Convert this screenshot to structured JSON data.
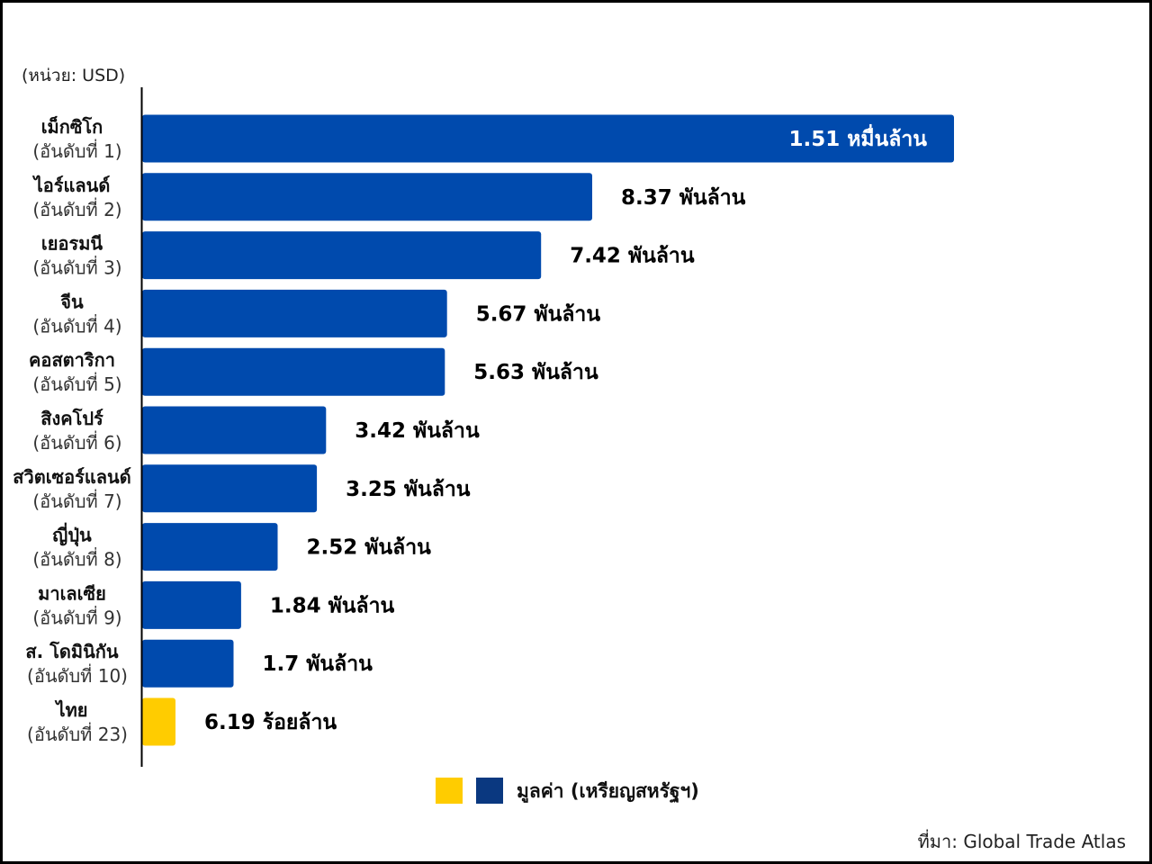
{
  "chart_data": {
    "type": "bar",
    "orientation": "horizontal",
    "unit_label": "(หน่วย: USD)",
    "categories": [
      {
        "name": "เม็กซิโก",
        "rank": "(อันดับที่ 1)",
        "value": 15100000000,
        "label": "1.51 หมื่นล้าน",
        "highlight": false
      },
      {
        "name": "ไอร์แลนด์",
        "rank": "(อันดับที่ 2)",
        "value": 8370000000,
        "label": "8.37 พันล้าน",
        "highlight": false
      },
      {
        "name": "เยอรมนี",
        "rank": "(อันดับที่ 3)",
        "value": 7420000000,
        "label": "7.42 พันล้าน",
        "highlight": false
      },
      {
        "name": "จีน",
        "rank": "(อันดับที่ 4)",
        "value": 5670000000,
        "label": "5.67 พันล้าน",
        "highlight": false
      },
      {
        "name": "คอสตาริกา",
        "rank": "(อันดับที่ 5)",
        "value": 5630000000,
        "label": "5.63 พันล้าน",
        "highlight": false
      },
      {
        "name": "สิงคโปร์",
        "rank": "(อันดับที่ 6)",
        "value": 3420000000,
        "label": "3.42 พันล้าน",
        "highlight": false
      },
      {
        "name": "สวิตเซอร์แลนด์",
        "rank": "(อันดับที่ 7)",
        "value": 3250000000,
        "label": "3.25 พันล้าน",
        "highlight": false
      },
      {
        "name": "ญี่ปุ่น",
        "rank": "(อันดับที่ 8)",
        "value": 2520000000,
        "label": "2.52 พันล้าน",
        "highlight": false
      },
      {
        "name": "มาเลเซีย",
        "rank": "(อันดับที่ 9)",
        "value": 1840000000,
        "label": "1.84 พันล้าน",
        "highlight": false
      },
      {
        "name": "ส. โดมินิกัน",
        "rank": "(อันดับที่ 10)",
        "value": 1700000000,
        "label": "1.7 พันล้าน",
        "highlight": false
      },
      {
        "name": "ไทย",
        "rank": "(อันดับที่ 23)",
        "value": 619000000,
        "label": "6.19 ร้อยล้าน",
        "highlight": true
      }
    ],
    "xlim": [
      0,
      17000000000
    ],
    "legend": {
      "label": "มูลค่า (เหรียญสหรัฐฯ)",
      "placement": "bottom-center",
      "swatches": [
        "#FFCC00",
        "#0A3880"
      ]
    },
    "source": "ที่มา: Global Trade Atlas",
    "grid": false
  },
  "colors": {
    "bar": "#004AAD",
    "highlight": "#FFCC00",
    "axis": "#000000",
    "label_inside": "#FFFFFF",
    "label_outside": "#000000"
  }
}
